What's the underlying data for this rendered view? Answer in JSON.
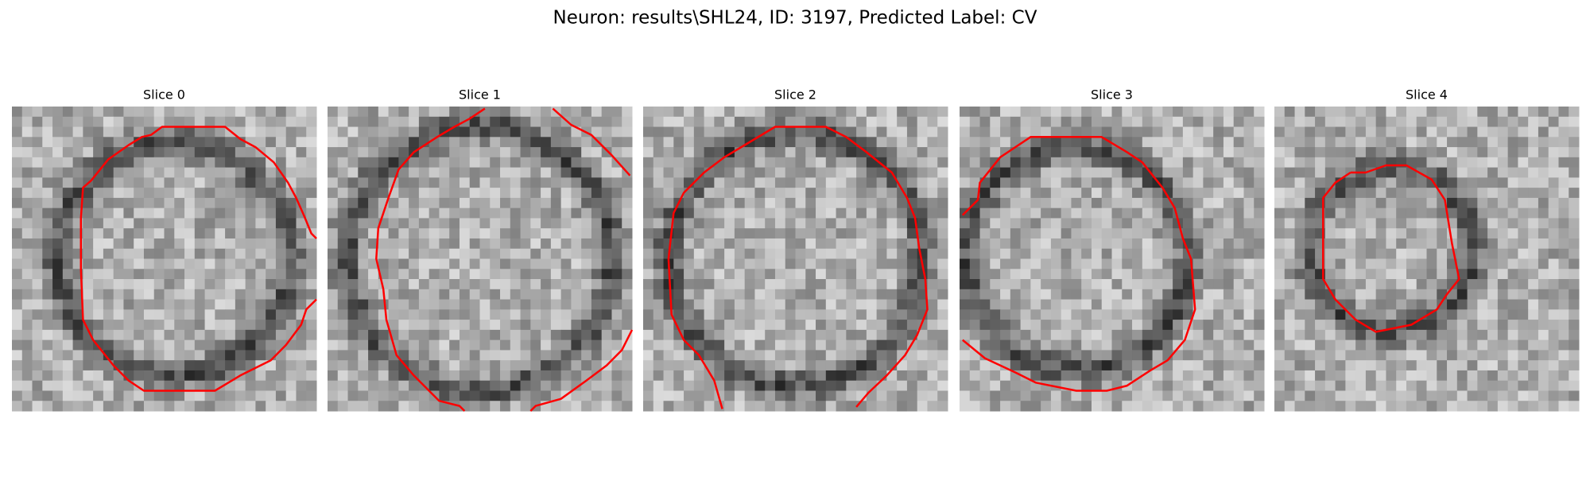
{
  "title": "Neuron: results\\SHL24, ID: 3197, Predicted Label: CV",
  "panels": [
    {
      "title": "Slice 0"
    },
    {
      "title": "Slice 1"
    },
    {
      "title": "Slice 2"
    },
    {
      "title": "Slice 3"
    },
    {
      "title": "Slice 4"
    }
  ]
}
